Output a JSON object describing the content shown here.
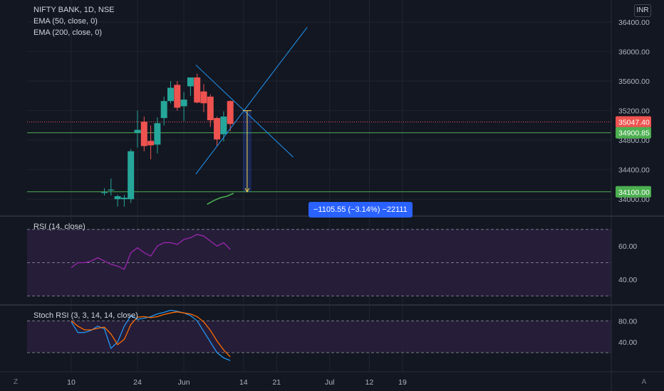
{
  "legend": {
    "title": "NIFTY BANK, 1D, NSE",
    "ema50": "EMA (50, close, 0)",
    "ema200": "EMA (200, close, 0)"
  },
  "currency": "INR",
  "corner_left": "Z",
  "corner_right": "A",
  "measure_label": "−1105.55 (−3.14%) −22111",
  "colors": {
    "background": "#131722",
    "up": "#26a69a",
    "down": "#ef5350",
    "grid": "#1f2430",
    "axis_text": "#b2b5be",
    "trendline": "#2196f3",
    "ema": "#4caf50",
    "hline": "#4caf50",
    "last_price": "#ef5350",
    "rsi_line": "#9c27b0",
    "stoch_k": "#2196f3",
    "stoch_d": "#ff6d00",
    "band": "#2a1f3d"
  },
  "chart_data": [
    {
      "type": "candlestick",
      "title": "NIFTY BANK, 1D, NSE",
      "ylim": [
        33780,
        36700
      ],
      "y_ticks": [
        34000,
        34400,
        34800,
        35200,
        35600,
        36000,
        36400
      ],
      "y_tick_labels": [
        "34000.00",
        "34400.00",
        "34800.00",
        "35200.00",
        "35600.00",
        "36000.00",
        "36400.00"
      ],
      "x_tick_labels": [
        {
          "label": "10",
          "index": 0
        },
        {
          "label": "24",
          "index": 10
        },
        {
          "label": "Jun",
          "index": 17
        },
        {
          "label": "14",
          "index": 26
        },
        {
          "label": "21",
          "index": 31
        },
        {
          "label": "Jul",
          "index": 39
        },
        {
          "label": "12",
          "index": 45
        },
        {
          "label": "19",
          "index": 50
        }
      ],
      "candles": [
        {
          "i": 5,
          "o": 34090,
          "h": 34150,
          "l": 34050,
          "c": 34095
        },
        {
          "i": 6,
          "o": 34120,
          "h": 34280,
          "l": 34050,
          "c": 34130
        },
        {
          "i": 7,
          "o": 34000,
          "h": 34060,
          "l": 33900,
          "c": 34040
        },
        {
          "i": 8,
          "o": 34000,
          "h": 34060,
          "l": 33900,
          "c": 34020
        },
        {
          "i": 9,
          "o": 34000,
          "h": 34680,
          "l": 33950,
          "c": 34650
        },
        {
          "i": 10,
          "o": 34900,
          "h": 35200,
          "l": 34700,
          "c": 34940
        },
        {
          "i": 11,
          "o": 35050,
          "h": 35120,
          "l": 34650,
          "c": 34720
        },
        {
          "i": 12,
          "o": 34790,
          "h": 35000,
          "l": 34540,
          "c": 34730
        },
        {
          "i": 13,
          "o": 34740,
          "h": 35110,
          "l": 34620,
          "c": 35030
        },
        {
          "i": 14,
          "o": 35100,
          "h": 35390,
          "l": 35000,
          "c": 35330
        },
        {
          "i": 15,
          "o": 35330,
          "h": 35600,
          "l": 35300,
          "c": 35510
        },
        {
          "i": 16,
          "o": 35550,
          "h": 35600,
          "l": 35200,
          "c": 35240
        },
        {
          "i": 17,
          "o": 35260,
          "h": 35450,
          "l": 35060,
          "c": 35350
        },
        {
          "i": 18,
          "o": 35530,
          "h": 35640,
          "l": 35400,
          "c": 35650
        },
        {
          "i": 19,
          "o": 35650,
          "h": 35700,
          "l": 35300,
          "c": 35310
        },
        {
          "i": 20,
          "o": 35460,
          "h": 35560,
          "l": 35180,
          "c": 35300
        },
        {
          "i": 21,
          "o": 35390,
          "h": 35420,
          "l": 34980,
          "c": 35070
        },
        {
          "i": 22,
          "o": 35100,
          "h": 35120,
          "l": 34720,
          "c": 34810
        },
        {
          "i": 23,
          "o": 34880,
          "h": 35190,
          "l": 34780,
          "c": 35120
        },
        {
          "i": 24,
          "o": 35330,
          "h": 35340,
          "l": 34920,
          "c": 35020
        }
      ],
      "ema50": {
        "x": [
          20.5,
          21.5,
          22.5,
          23.5,
          24.5
        ],
        "y": [
          33930,
          33980,
          34020,
          34040,
          34080
        ]
      },
      "price_lines": [
        {
          "value": 35047.4,
          "label": "35047.40",
          "style": "dotted-last"
        },
        {
          "value": 34900.85,
          "label": "34900.85",
          "style": "solid"
        },
        {
          "value": 34100.0,
          "label": "34100.00",
          "style": "solid"
        }
      ],
      "trendlines": [
        {
          "from": [
            18.8,
            35820
          ],
          "to": [
            33.5,
            34570
          ]
        },
        {
          "from": [
            18.8,
            34340
          ],
          "to": [
            35.6,
            36330
          ]
        }
      ],
      "measure": {
        "x_from": 25.9,
        "x_to": 27.2,
        "y_from": 35200,
        "y_to": 34100
      }
    },
    {
      "type": "line",
      "title": "RSI (14, close)",
      "ylim": [
        25,
        78
      ],
      "y_ticks": [
        40,
        60
      ],
      "y_tick_labels": [
        "40.00",
        "60.00"
      ],
      "bands": [
        70,
        50,
        30
      ],
      "series": [
        {
          "x": [
            0,
            1,
            2,
            3,
            4,
            5,
            6,
            7,
            8,
            9,
            10,
            11,
            12,
            13,
            14,
            15,
            16,
            17,
            18,
            19,
            20,
            21,
            22,
            23,
            24
          ],
          "values": [
            47,
            50,
            50,
            51,
            53,
            51,
            49,
            48,
            46,
            56,
            59,
            56,
            54,
            60,
            62,
            62,
            61,
            64,
            65,
            67,
            66,
            63,
            60,
            62,
            58
          ]
        }
      ]
    },
    {
      "type": "line",
      "title": "Stoch RSI (3, 3, 14, 14, close)",
      "ylim": [
        -15,
        110
      ],
      "y_ticks": [
        40,
        80
      ],
      "y_tick_labels": [
        "40.00",
        "80.00"
      ],
      "bands": [
        80,
        20
      ],
      "series": [
        {
          "x": [
            0,
            1,
            2,
            3,
            4,
            5,
            6,
            7,
            8,
            9,
            10,
            11,
            12,
            13,
            14,
            15,
            16,
            17,
            18,
            19,
            20,
            21,
            22,
            23,
            24
          ],
          "values": [
            78,
            58,
            58,
            62,
            70,
            65,
            28,
            40,
            70,
            90,
            83,
            85,
            88,
            93,
            96,
            100,
            98,
            95,
            90,
            80,
            60,
            40,
            20,
            10,
            5
          ]
        },
        {
          "x": [
            0,
            1,
            2,
            3,
            4,
            5,
            6,
            7,
            8,
            9,
            10,
            11,
            12,
            13,
            14,
            15,
            16,
            17,
            18,
            19,
            20,
            21,
            22,
            23,
            24
          ],
          "values": [
            80,
            70,
            63,
            63,
            66,
            68,
            55,
            35,
            45,
            73,
            87,
            88,
            86,
            88,
            92,
            95,
            97,
            95,
            93,
            88,
            78,
            62,
            42,
            25,
            12
          ]
        }
      ]
    }
  ]
}
